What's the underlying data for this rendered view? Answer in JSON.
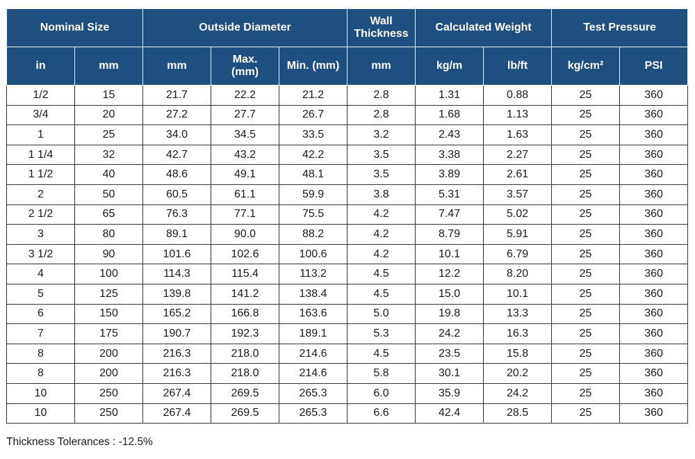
{
  "headers": {
    "group": {
      "nominal_size": "Nominal Size",
      "outside_diameter": "Outside Diameter",
      "wall_thickness_line1": "Wall",
      "wall_thickness_line2": "Thickness",
      "calculated_weight": "Calculated Weight",
      "test_pressure": "Test Pressure"
    },
    "sub": {
      "nominal_in": "in",
      "nominal_mm": "mm",
      "od_mm": "mm",
      "od_max_line1": "Max.",
      "od_max_line2": "(mm)",
      "od_min": "Min. (mm)",
      "wall_mm": "mm",
      "weight_kgm": "kg/m",
      "weight_lbft": "lb/ft",
      "pressure_kgcm2": "kg/cm²",
      "pressure_psi": "PSI"
    }
  },
  "rows": [
    [
      "1/2",
      "15",
      "21.7",
      "22.2",
      "21.2",
      "2.8",
      "1.31",
      "0.88",
      "25",
      "360"
    ],
    [
      "3/4",
      "20",
      "27.2",
      "27.7",
      "26.7",
      "2.8",
      "1.68",
      "1.13",
      "25",
      "360"
    ],
    [
      "1",
      "25",
      "34.0",
      "34.5",
      "33.5",
      "3.2",
      "2.43",
      "1.63",
      "25",
      "360"
    ],
    [
      "1 1/4",
      "32",
      "42.7",
      "43.2",
      "42.2",
      "3.5",
      "3.38",
      "2.27",
      "25",
      "360"
    ],
    [
      "1 1/2",
      "40",
      "48.6",
      "49.1",
      "48.1",
      "3.5",
      "3.89",
      "2.61",
      "25",
      "360"
    ],
    [
      "2",
      "50",
      "60.5",
      "61.1",
      "59.9",
      "3.8",
      "5.31",
      "3.57",
      "25",
      "360"
    ],
    [
      "2 1/2",
      "65",
      "76.3",
      "77.1",
      "75.5",
      "4.2",
      "7.47",
      "5.02",
      "25",
      "360"
    ],
    [
      "3",
      "80",
      "89.1",
      "90.0",
      "88.2",
      "4.2",
      "8.79",
      "5.91",
      "25",
      "360"
    ],
    [
      "3 1/2",
      "90",
      "101.6",
      "102.6",
      "100.6",
      "4.2",
      "10.1",
      "6.79",
      "25",
      "360"
    ],
    [
      "4",
      "100",
      "114.3",
      "115.4",
      "113.2",
      "4.5",
      "12.2",
      "8.20",
      "25",
      "360"
    ],
    [
      "5",
      "125",
      "139.8",
      "141.2",
      "138.4",
      "4.5",
      "15.0",
      "10.1",
      "25",
      "360"
    ],
    [
      "6",
      "150",
      "165.2",
      "166.8",
      "163.6",
      "5.0",
      "19.8",
      "13.3",
      "25",
      "360"
    ],
    [
      "7",
      "175",
      "190.7",
      "192.3",
      "189.1",
      "5.3",
      "24.2",
      "16.3",
      "25",
      "360"
    ],
    [
      "8",
      "200",
      "216.3",
      "218.0",
      "214.6",
      "4.5",
      "23.5",
      "15.8",
      "25",
      "360"
    ],
    [
      "8",
      "200",
      "216.3",
      "218.0",
      "214.6",
      "5.8",
      "30.1",
      "20.2",
      "25",
      "360"
    ],
    [
      "10",
      "250",
      "267.4",
      "269.5",
      "265.3",
      "6.0",
      "35.9",
      "24.2",
      "25",
      "360"
    ],
    [
      "10",
      "250",
      "267.4",
      "269.5",
      "265.3",
      "6.6",
      "42.4",
      "28.5",
      "25",
      "360"
    ]
  ],
  "footnote": "Thickness Tolerances : -12.5%",
  "colors": {
    "header_bg": "#1e4f7f",
    "header_text": "#ffffff",
    "border": "#333333"
  }
}
